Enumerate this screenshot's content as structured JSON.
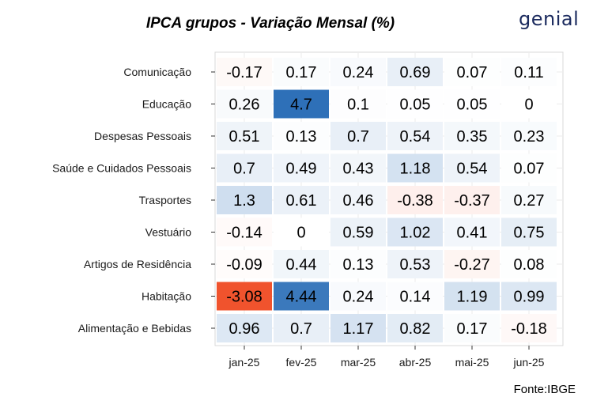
{
  "chart_data": {
    "type": "heatmap",
    "title": "IPCA grupos - Variação Mensal (%)",
    "x": [
      "jan-25",
      "fev-25",
      "mar-25",
      "abr-25",
      "mai-25",
      "jun-25"
    ],
    "y": [
      "Comunicação",
      "Educação",
      "Despesas Pessoais",
      "Saúde e Cuidados Pessoais",
      "Trasportes",
      "Vestuário",
      "Artigos de Residência",
      "Habitação",
      "Alimentação e Bebidas"
    ],
    "values": [
      [
        "-0.17",
        "0.17",
        "0.24",
        "0.69",
        "0.07",
        "0.11"
      ],
      [
        "0.26",
        "4.7",
        "0.1",
        "0.05",
        "0.05",
        "0"
      ],
      [
        "0.51",
        "0.13",
        "0.7",
        "0.54",
        "0.35",
        "0.23"
      ],
      [
        "0.7",
        "0.49",
        "0.43",
        "1.18",
        "0.54",
        "0.07"
      ],
      [
        "1.3",
        "0.61",
        "0.46",
        "-0.38",
        "-0.37",
        "0.27"
      ],
      [
        "-0.14",
        "0",
        "0.59",
        "1.02",
        "0.41",
        "0.75"
      ],
      [
        "-0.09",
        "0.44",
        "0.13",
        "0.53",
        "-0.27",
        "0.08"
      ],
      [
        "-3.08",
        "4.44",
        "0.24",
        "0.14",
        "1.19",
        "0.99"
      ],
      [
        "0.96",
        "0.7",
        "1.17",
        "0.82",
        "0.17",
        "-0.18"
      ]
    ],
    "color_scale": {
      "negative": "#f0532d",
      "zero": "#ffffff",
      "positive": "#2e70b8"
    },
    "grid": true,
    "legend": "none"
  },
  "brand": {
    "logo_text": "genial",
    "logo_color": "#1b2a5e"
  },
  "source": "Fonte:IBGE"
}
